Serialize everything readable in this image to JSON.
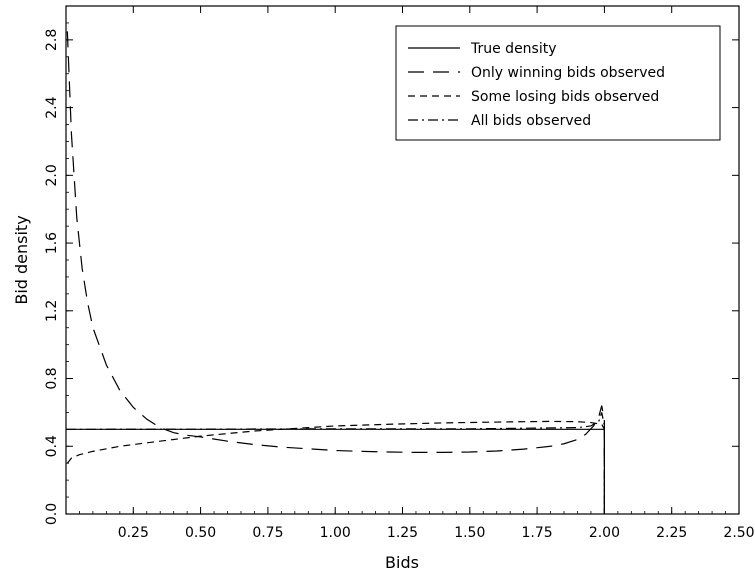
{
  "chart_data": {
    "type": "line",
    "title": "",
    "xlabel": "Bids",
    "ylabel": "Bid density",
    "xlim": [
      0,
      2.5
    ],
    "ylim": [
      0,
      3.0
    ],
    "xticks": [
      "0.25",
      "0.50",
      "0.75",
      "1.00",
      "1.25",
      "1.50",
      "1.75",
      "2.00",
      "2.25",
      "2.50"
    ],
    "xtick_values": [
      0.25,
      0.5,
      0.75,
      1.0,
      1.25,
      1.5,
      1.75,
      2.0,
      2.25,
      2.5
    ],
    "yticks": [
      "0.0",
      "0.4",
      "0.8",
      "1.2",
      "1.6",
      "2.0",
      "2.4",
      "2.8"
    ],
    "ytick_values": [
      0.0,
      0.4,
      0.8,
      1.2,
      1.6,
      2.0,
      2.4,
      2.8
    ],
    "grid": false,
    "legend_position": "top-right",
    "series": [
      {
        "name": "True density",
        "style": "solid",
        "x": [
          0.0,
          2.0,
          2.0
        ],
        "y": [
          0.5,
          0.5,
          0.0
        ]
      },
      {
        "name": "Only winning bids observed",
        "style": "long-dash",
        "x": [
          0.005,
          0.02,
          0.04,
          0.06,
          0.08,
          0.1,
          0.15,
          0.2,
          0.25,
          0.3,
          0.35,
          0.4,
          0.45,
          0.5,
          0.6,
          0.7,
          0.8,
          0.9,
          1.0,
          1.1,
          1.2,
          1.3,
          1.4,
          1.5,
          1.6,
          1.7,
          1.8,
          1.85,
          1.9,
          1.93,
          1.96,
          1.98,
          1.99,
          2.0,
          2.0
        ],
        "y": [
          2.85,
          2.25,
          1.75,
          1.45,
          1.25,
          1.1,
          0.88,
          0.73,
          0.63,
          0.56,
          0.51,
          0.48,
          0.465,
          0.455,
          0.43,
          0.41,
          0.395,
          0.385,
          0.375,
          0.37,
          0.366,
          0.364,
          0.364,
          0.366,
          0.372,
          0.383,
          0.4,
          0.415,
          0.44,
          0.47,
          0.52,
          0.58,
          0.64,
          0.55,
          0.0
        ]
      },
      {
        "name": "Some losing bids observed",
        "style": "short-dash",
        "x": [
          0.005,
          0.02,
          0.05,
          0.1,
          0.15,
          0.2,
          0.3,
          0.4,
          0.5,
          0.6,
          0.7,
          0.8,
          0.9,
          1.0,
          1.2,
          1.4,
          1.6,
          1.8,
          1.9,
          1.95,
          1.99,
          2.0,
          2.0
        ],
        "y": [
          0.3,
          0.33,
          0.35,
          0.37,
          0.385,
          0.4,
          0.42,
          0.44,
          0.46,
          0.475,
          0.49,
          0.5,
          0.51,
          0.52,
          0.53,
          0.538,
          0.543,
          0.547,
          0.545,
          0.54,
          0.53,
          0.5,
          0.0
        ]
      },
      {
        "name": "All bids observed",
        "style": "dash-dot",
        "x": [
          0.0,
          0.5,
          1.0,
          1.5,
          1.9,
          1.95,
          1.98,
          1.99,
          2.0,
          2.0
        ],
        "y": [
          0.5,
          0.501,
          0.503,
          0.503,
          0.51,
          0.52,
          0.55,
          0.6,
          0.52,
          0.0
        ]
      }
    ]
  }
}
